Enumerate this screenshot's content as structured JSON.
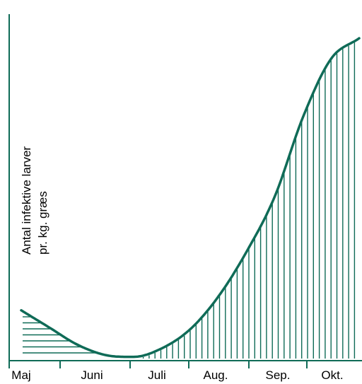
{
  "chart_data": {
    "type": "area",
    "title": "",
    "xlabel": "",
    "ylabel_lines": [
      "Antal infektive larver",
      "pr. kg. græs"
    ],
    "categories": [
      "Maj",
      "Juni",
      "Juli",
      "Aug.",
      "Sep.",
      "Okt."
    ],
    "grid": false,
    "legend": "none",
    "series": [
      {
        "x": [
          0.0,
          0.5,
          1.0,
          1.5,
          2.0,
          2.5,
          3.0,
          3.5,
          4.0,
          4.5,
          5.0,
          5.5,
          6.0
        ],
        "y": [
          14.0,
          9.0,
          4.0,
          1.0,
          0.5,
          3.0,
          8.5,
          18.0,
          31.0,
          47.0,
          70.0,
          87.0,
          93.0
        ]
      }
    ],
    "ylim": [
      0,
      100
    ],
    "xlim": [
      0,
      6
    ],
    "colors": {
      "line": "#0f6b57",
      "hatch": "#0f6b57",
      "axis": "#0f6b57"
    }
  }
}
